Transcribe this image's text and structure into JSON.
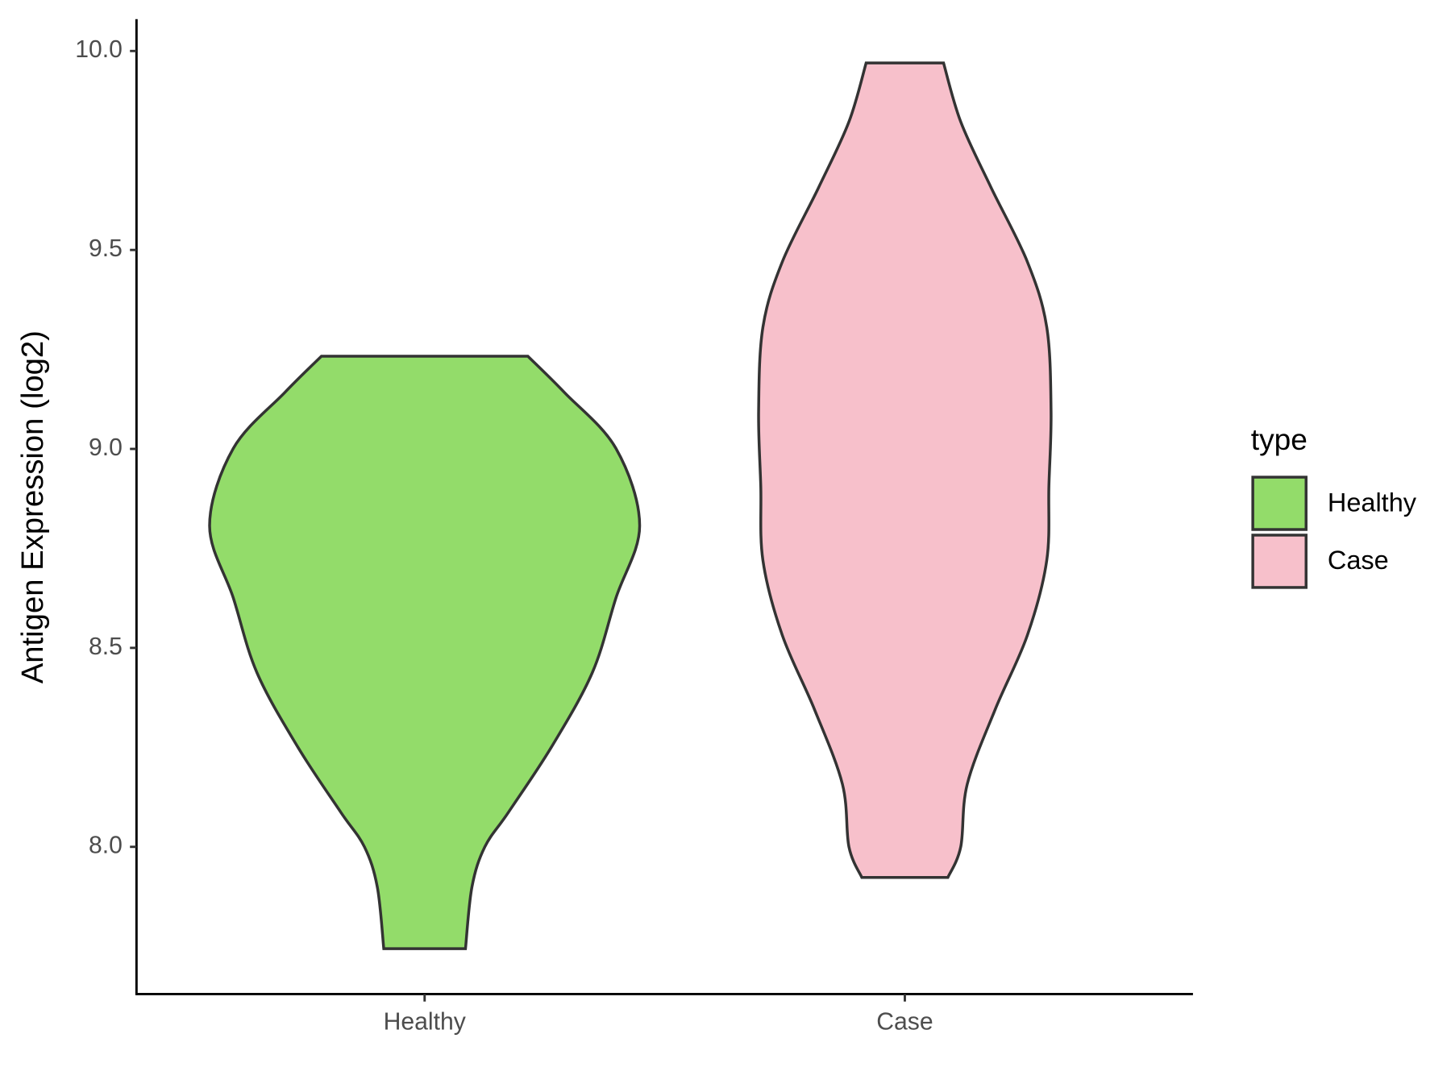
{
  "chart_data": {
    "type": "violin",
    "y_label": "Antigen Expression (log2)",
    "categories": [
      "Healthy",
      "Case"
    ],
    "legend_title": "type",
    "legend": "right",
    "ylim": [
      7.63,
      10.08
    ],
    "yticks": [
      {
        "value": 8,
        "label": "8.0"
      },
      {
        "value": 8.5,
        "label": "8.5"
      },
      {
        "value": 9,
        "label": "9.0"
      },
      {
        "value": 9.5,
        "label": "9.5"
      },
      {
        "value": 10,
        "label": "10.0"
      }
    ],
    "series": [
      {
        "name": "Healthy",
        "color": "#93dc6a",
        "y": [
          9.233,
          9.142,
          9.001,
          8.807,
          8.626,
          8.438,
          8.251,
          8.087,
          8.0,
          7.899,
          7.744
        ],
        "density": [
          0.48,
          0.65,
          0.89,
          1.0,
          0.89,
          0.78,
          0.59,
          0.39,
          0.28,
          0.22,
          0.19
        ]
      },
      {
        "name": "Case",
        "color": "#f7c0cb",
        "y": [
          9.97,
          9.822,
          9.658,
          9.47,
          9.306,
          9.095,
          8.907,
          8.72,
          8.532,
          8.345,
          8.157,
          8.0,
          7.923
        ],
        "density": [
          0.18,
          0.26,
          0.4,
          0.57,
          0.66,
          0.68,
          0.67,
          0.66,
          0.57,
          0.42,
          0.29,
          0.26,
          0.2
        ]
      }
    ]
  }
}
